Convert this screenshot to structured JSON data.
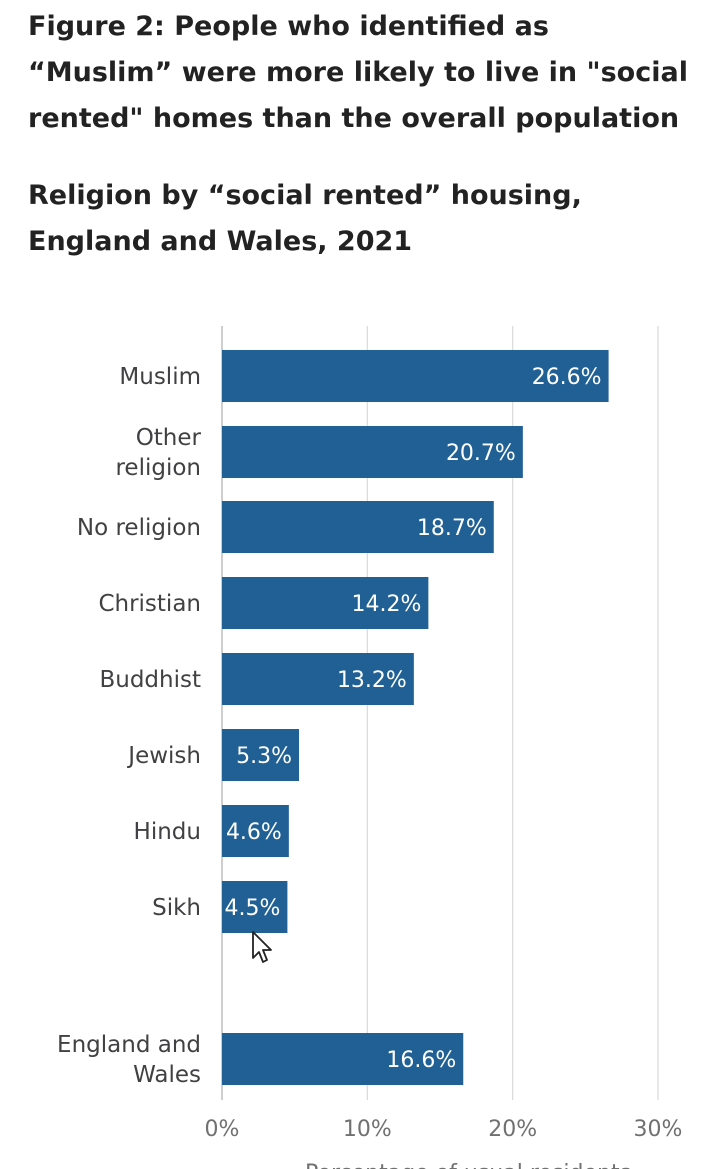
{
  "figure_title_lines": [
    "Figure 2: People who identified as",
    "“Muslim” were more likely to live in \"social",
    "rented\" homes than the overall population"
  ],
  "chart_data": {
    "type": "bar",
    "orientation": "horizontal",
    "title_lines": [
      "Religion by “social rented” housing,",
      "England and Wales, 2021"
    ],
    "categories": [
      [
        "Muslim"
      ],
      [
        "Other",
        "religion"
      ],
      [
        "No religion"
      ],
      [
        "Christian"
      ],
      [
        "Buddhist"
      ],
      [
        "Jewish"
      ],
      [
        "Hindu"
      ],
      [
        "Sikh"
      ],
      [
        "England and",
        "Wales"
      ]
    ],
    "values": [
      26.6,
      20.7,
      18.7,
      14.2,
      13.2,
      5.3,
      4.6,
      4.5,
      16.6
    ],
    "data_labels": [
      "26.6%",
      "20.7%",
      "18.7%",
      "14.2%",
      "13.2%",
      "5.3%",
      "4.6%",
      "4.5%",
      "16.6%"
    ],
    "xlim": [
      0,
      30
    ],
    "x_ticks": [
      0,
      10,
      20,
      30
    ],
    "x_tick_labels": [
      "0%",
      "10%",
      "20%",
      "30%"
    ],
    "xlabel": "Percentage of usual residents",
    "grid": true,
    "bar_color": "#206095",
    "grid_color": "#d9d9d9"
  }
}
